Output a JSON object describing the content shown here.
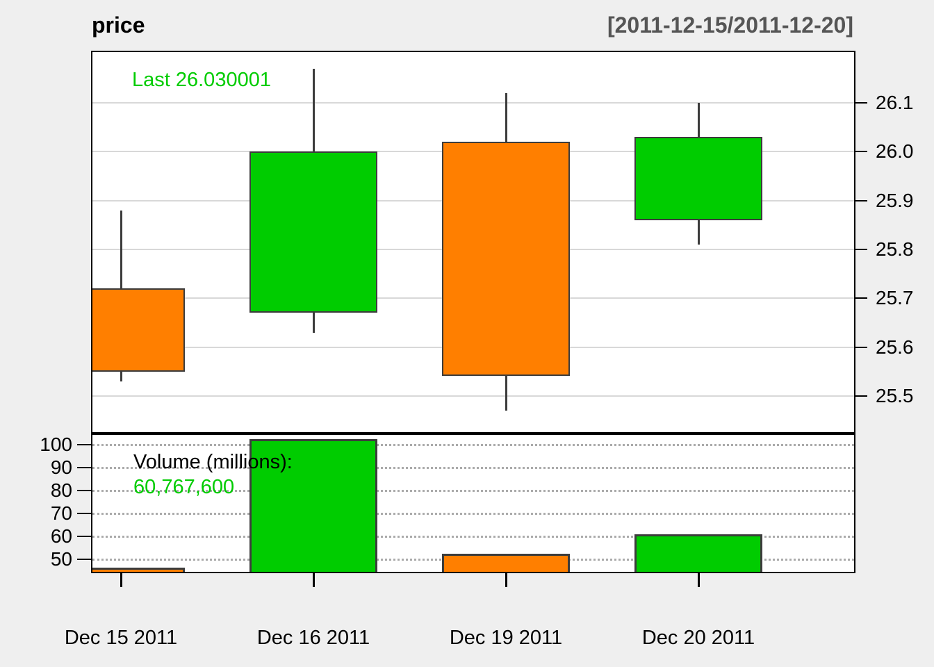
{
  "header": {
    "title": "price",
    "date_range": "[2011-12-15/2011-12-20]"
  },
  "annotations": {
    "last_price_label": "Last 26.030001",
    "volume_title": "Volume (millions):",
    "volume_last": "60,767,600"
  },
  "colors": {
    "up": "#00CC00",
    "down": "#FF7F00",
    "candle_border": "#3C3C3C",
    "annotation_green": "#00CC00",
    "range_gray": "#555555",
    "background": "#EFEFEF",
    "plot_background": "#FFFFFF",
    "grid_solid": "#D8D8D8",
    "grid_dotted": "#ABABAB",
    "frame": "#000000"
  },
  "chart_data": {
    "type": "candlestick",
    "title": "price",
    "subtitle": "[2011-12-15/2011-12-20]",
    "categories": [
      "Dec 15 2011",
      "Dec 16 2011",
      "Dec 19 2011",
      "Dec 20 2011"
    ],
    "series": [
      {
        "name": "price",
        "type": "candlestick",
        "open": [
          25.72,
          25.67,
          26.02,
          25.86
        ],
        "high": [
          25.88,
          26.17,
          26.12,
          26.1
        ],
        "low": [
          25.53,
          25.63,
          25.47,
          25.81
        ],
        "close": [
          25.55,
          26.0,
          25.54,
          26.03
        ]
      },
      {
        "name": "volume_millions",
        "type": "bar",
        "values": [
          46.4,
          102.4,
          52.4,
          60.77
        ]
      }
    ],
    "price_axis": {
      "side": "right",
      "ticks": [
        26.1,
        26.0,
        25.9,
        25.8,
        25.7,
        25.6,
        25.5
      ],
      "tick_labels": [
        "26.1",
        "26.0",
        "25.9",
        "25.8",
        "25.7",
        "25.6",
        "25.5"
      ],
      "ylim": [
        25.426,
        26.204
      ]
    },
    "volume_axis": {
      "side": "left",
      "ticks": [
        100,
        90,
        80,
        70,
        60,
        50
      ],
      "tick_labels": [
        "100",
        "90",
        "80",
        "70",
        "60",
        "50"
      ],
      "ylim": [
        44.5,
        104.2
      ]
    },
    "grid": true,
    "legend_position": "none"
  }
}
